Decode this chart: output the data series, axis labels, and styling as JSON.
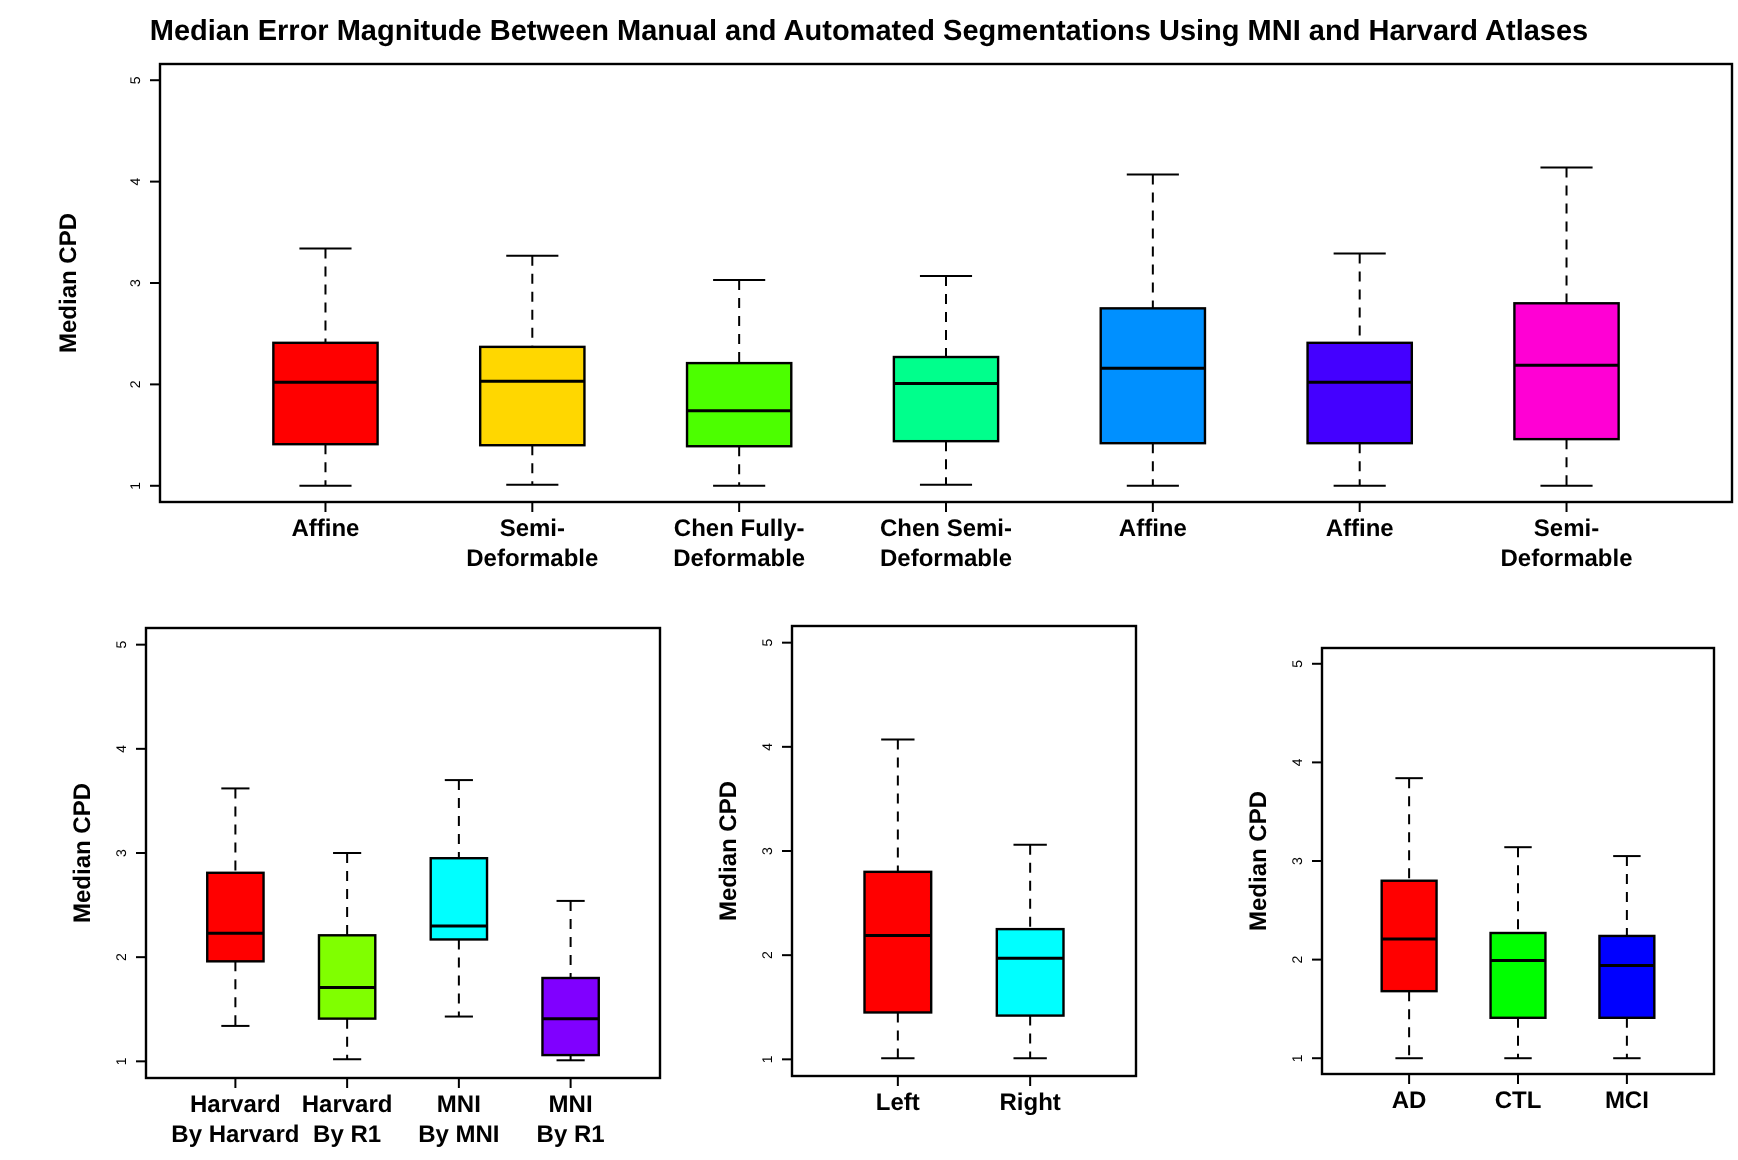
{
  "chart_data": [
    {
      "type": "box",
      "title": "Median Error Magnitude Between Manual and Automated Segmentations Using MNI and Harvard Atlases",
      "ylabel": "Median CPD",
      "categories": [
        "Affine",
        "Semi-\nDeformable",
        "Chen Fully-\nDeformable",
        "Chen Semi-\nDeformable",
        "Affine",
        "Affine",
        "Semi-\nDeformable"
      ],
      "colors": [
        "#ff0000",
        "#ffd700",
        "#4cff00",
        "#00ff8c",
        "#0090ff",
        "#4400ff",
        "#ff00d4"
      ],
      "ylim": [
        0.84,
        5.16
      ],
      "yticks": [
        1,
        2,
        3,
        4,
        5
      ],
      "boxes": [
        {
          "low": 1.0,
          "q1": 1.41,
          "median": 2.02,
          "q3": 2.41,
          "high": 3.34
        },
        {
          "low": 1.01,
          "q1": 1.4,
          "median": 2.03,
          "q3": 2.37,
          "high": 3.27
        },
        {
          "low": 1.0,
          "q1": 1.39,
          "median": 1.74,
          "q3": 2.21,
          "high": 3.03
        },
        {
          "low": 1.01,
          "q1": 1.44,
          "median": 2.01,
          "q3": 2.27,
          "high": 3.07
        },
        {
          "low": 1.0,
          "q1": 1.42,
          "median": 2.16,
          "q3": 2.75,
          "high": 4.07
        },
        {
          "low": 1.0,
          "q1": 1.42,
          "median": 2.02,
          "q3": 2.41,
          "high": 3.29
        },
        {
          "low": 1.0,
          "q1": 1.46,
          "median": 2.19,
          "q3": 2.8,
          "high": 4.14
        }
      ]
    },
    {
      "type": "box",
      "ylabel": "Median CPD",
      "categories": [
        "Harvard\nBy Harvard",
        "Harvard\nBy R1",
        "MNI\nBy MNI",
        "MNI\nBy R1"
      ],
      "colors": [
        "#ff0000",
        "#80ff00",
        "#00ffff",
        "#8000ff"
      ],
      "ylim": [
        0.84,
        5.16
      ],
      "yticks": [
        1,
        2,
        3,
        4,
        5
      ],
      "boxes": [
        {
          "low": 1.34,
          "q1": 1.96,
          "median": 2.23,
          "q3": 2.81,
          "high": 3.62
        },
        {
          "low": 1.02,
          "q1": 1.41,
          "median": 1.71,
          "q3": 2.21,
          "high": 3.0
        },
        {
          "low": 1.43,
          "q1": 2.17,
          "median": 2.3,
          "q3": 2.95,
          "high": 3.7
        },
        {
          "low": 1.01,
          "q1": 1.06,
          "median": 1.41,
          "q3": 1.8,
          "high": 2.54
        }
      ]
    },
    {
      "type": "box",
      "ylabel": "Median CPD",
      "categories": [
        "Left",
        "Right"
      ],
      "colors": [
        "#ff0000",
        "#00ffff"
      ],
      "ylim": [
        0.84,
        5.16
      ],
      "yticks": [
        1,
        2,
        3,
        4,
        5
      ],
      "boxes": [
        {
          "low": 1.01,
          "q1": 1.45,
          "median": 2.19,
          "q3": 2.8,
          "high": 4.07
        },
        {
          "low": 1.01,
          "q1": 1.42,
          "median": 1.97,
          "q3": 2.25,
          "high": 3.06
        }
      ]
    },
    {
      "type": "box",
      "ylabel": "Median CPD",
      "categories": [
        "AD",
        "CTL",
        "MCI"
      ],
      "colors": [
        "#ff0000",
        "#00ff00",
        "#0000ff"
      ],
      "ylim": [
        0.84,
        5.16
      ],
      "yticks": [
        1,
        2,
        3,
        4,
        5
      ],
      "boxes": [
        {
          "low": 1.0,
          "q1": 1.68,
          "median": 2.21,
          "q3": 2.8,
          "high": 3.84
        },
        {
          "low": 1.0,
          "q1": 1.41,
          "median": 1.99,
          "q3": 2.27,
          "high": 3.14
        },
        {
          "low": 1.0,
          "q1": 1.41,
          "median": 1.94,
          "q3": 2.24,
          "high": 3.05
        }
      ]
    }
  ]
}
